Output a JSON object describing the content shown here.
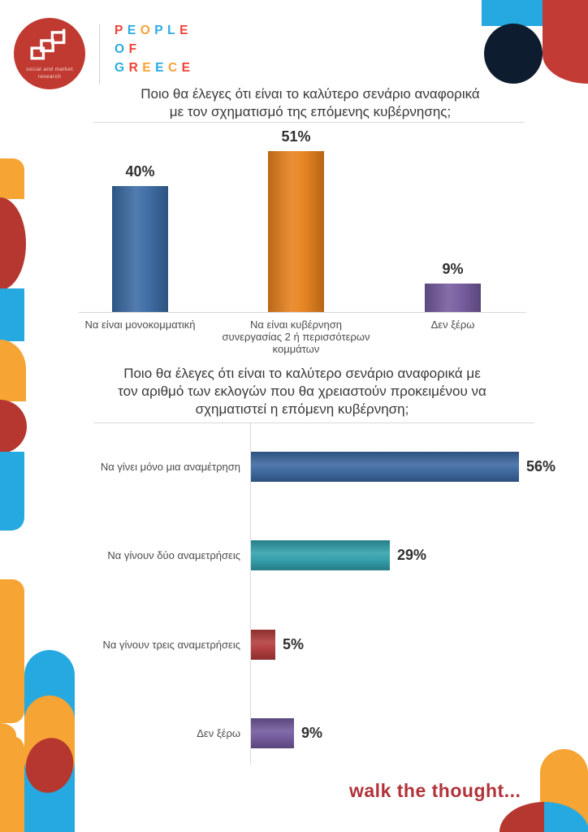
{
  "header": {
    "logo_caption_line1": "social and market",
    "logo_caption_line2": "research",
    "brand_rows": [
      {
        "text": "PEOPLE",
        "colors": [
          "#ef4236",
          "#29abe2",
          "#f7a233",
          "#29abe2",
          "#29abe2",
          "#ef4236"
        ]
      },
      {
        "text": "OF",
        "colors": [
          "#29abe2",
          "#ef4236"
        ]
      },
      {
        "text": "GREECE",
        "colors": [
          "#29abe2",
          "#ef4236",
          "#f7a233",
          "#29abe2",
          "#f7a233",
          "#ef4236"
        ]
      }
    ]
  },
  "footer": {
    "tagline": "walk the thought..."
  },
  "chart_data": [
    {
      "type": "bar",
      "orientation": "vertical",
      "title": "Ποιο θα έλεγες ότι είναι το καλύτερο σενάριο αναφορικά με τον σχηματισμό της επόμενης κυβέρνησης;",
      "title_lines": [
        "Ποιο θα έλεγες ότι είναι το καλύτερο σενάριο αναφορικά",
        "με τον σχηματισμό της επόμενης κυβέρνησης;"
      ],
      "categories": [
        "Να είναι μονοκομματική",
        "Να είναι κυβέρνηση συνεργασίας 2 ή περισσότερων κομμάτων",
        "Δεν ξέρω"
      ],
      "category_lines": [
        [
          "Να είναι μονοκομματική"
        ],
        [
          "Να είναι κυβέρνηση",
          "συνεργασίας 2 ή περισσότερων",
          "κομμάτων"
        ],
        [
          "Δεν ξέρω"
        ]
      ],
      "values": [
        40,
        51,
        9
      ],
      "value_labels": [
        "40%",
        "51%",
        "9%"
      ],
      "bar_colors": [
        "#3a6aa4",
        "#e8811c",
        "#745a9e"
      ],
      "ylim": [
        0,
        57
      ],
      "gridlines": false,
      "legend": false
    },
    {
      "type": "bar",
      "orientation": "horizontal",
      "title": "Ποιο θα έλεγες ότι είναι το καλύτερο σενάριο αναφορικά με τον αριθμό των εκλογών που θα χρειαστούν προκειμένου να σχηματιστεί η επόμενη κυβέρνηση;",
      "title_lines": [
        "Ποιο θα έλεγες ότι είναι το καλύτερο σενάριο αναφορικά με",
        "τον αριθμό των εκλογών που θα χρειαστούν προκειμένου να",
        "σχηματιστεί η επόμενη κυβέρνηση;"
      ],
      "categories": [
        "Να γίνει μόνο μια αναμέτρηση",
        "Να γίνουν δύο αναμετρήσεις",
        "Να γίνουν τρεις αναμετρήσεις",
        "Δεν ξέρω"
      ],
      "values": [
        56,
        29,
        5,
        9
      ],
      "value_labels": [
        "56%",
        "29%",
        "5%",
        "9%"
      ],
      "bar_colors": [
        "#3a679e",
        "#2f9fab",
        "#b23a3a",
        "#71589c"
      ],
      "xlim": [
        0,
        60
      ],
      "gridlines": false,
      "legend": false
    }
  ],
  "palette": {
    "orange": "#f6a433",
    "red": "#b5372f",
    "cyan": "#25a9e0",
    "navy": "#0e1c30",
    "corner_red": "#c23b35",
    "logo_red": "#c13a31",
    "tagline_red": "#b13239",
    "line_gray": "#d9d9d9",
    "text_dark": "#383838",
    "text_gray": "#4c4c4c",
    "value_dark": "#2f2f2f"
  }
}
